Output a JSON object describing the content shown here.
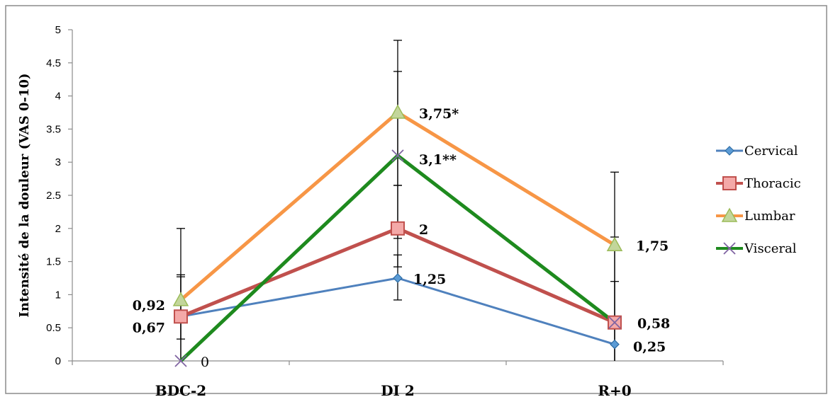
{
  "chart_data": {
    "type": "line",
    "ylabel": "Intensité de la douleur (VAS 0-10)",
    "categories": [
      "BDC-2",
      "DI 2",
      "R+0"
    ],
    "ylim": [
      0,
      5
    ],
    "yticks": [
      "0",
      "0.5",
      "1",
      "1.5",
      "2",
      "2.5",
      "3",
      "3.5",
      "4",
      "4.5",
      "5"
    ],
    "grid": false,
    "legend": "right",
    "series": [
      {
        "name": "Cervical",
        "values": [
          0.67,
          1.25,
          0.25
        ],
        "color": "#4f81bd",
        "marker": "diamond-icon",
        "labels": [
          "",
          "1,25",
          "0,25"
        ]
      },
      {
        "name": "Thoracic",
        "values": [
          0.67,
          2,
          0.58
        ],
        "color": "#c0504d",
        "marker": "square-icon",
        "labels": [
          "0,67",
          "2",
          "0,58"
        ]
      },
      {
        "name": "Lumbar",
        "values": [
          0.92,
          3.75,
          1.75
        ],
        "color": "#f79646",
        "marker": "triangle-icon",
        "labels": [
          "0,92",
          "3,75*",
          "1,75"
        ]
      },
      {
        "name": "Visceral",
        "values": [
          0,
          3.1,
          0.58
        ],
        "color": "#1e8a1e",
        "marker": "x-icon",
        "labels": [
          "0",
          "3,1**",
          ""
        ]
      }
    ],
    "error_bars": [
      {
        "category": "BDC-2",
        "low": 0.0,
        "high": 2.0
      },
      {
        "category": "BDC-2",
        "low": 0.33,
        "high": 1.3
      },
      {
        "category": "BDC-2",
        "low": 0.0,
        "high": 1.27
      },
      {
        "category": "DI 2",
        "low": 0.92,
        "high": 1.6
      },
      {
        "category": "DI 2",
        "low": 1.42,
        "high": 2.65
      },
      {
        "category": "DI 2",
        "low": 1.85,
        "high": 4.37
      },
      {
        "category": "DI 2",
        "low": 2.65,
        "high": 4.84
      },
      {
        "category": "R+0",
        "low": 0.0,
        "high": 2.85
      },
      {
        "category": "R+0",
        "low": 0.0,
        "high": 1.87
      },
      {
        "category": "R+0",
        "low": 0.0,
        "high": 1.2
      }
    ]
  }
}
